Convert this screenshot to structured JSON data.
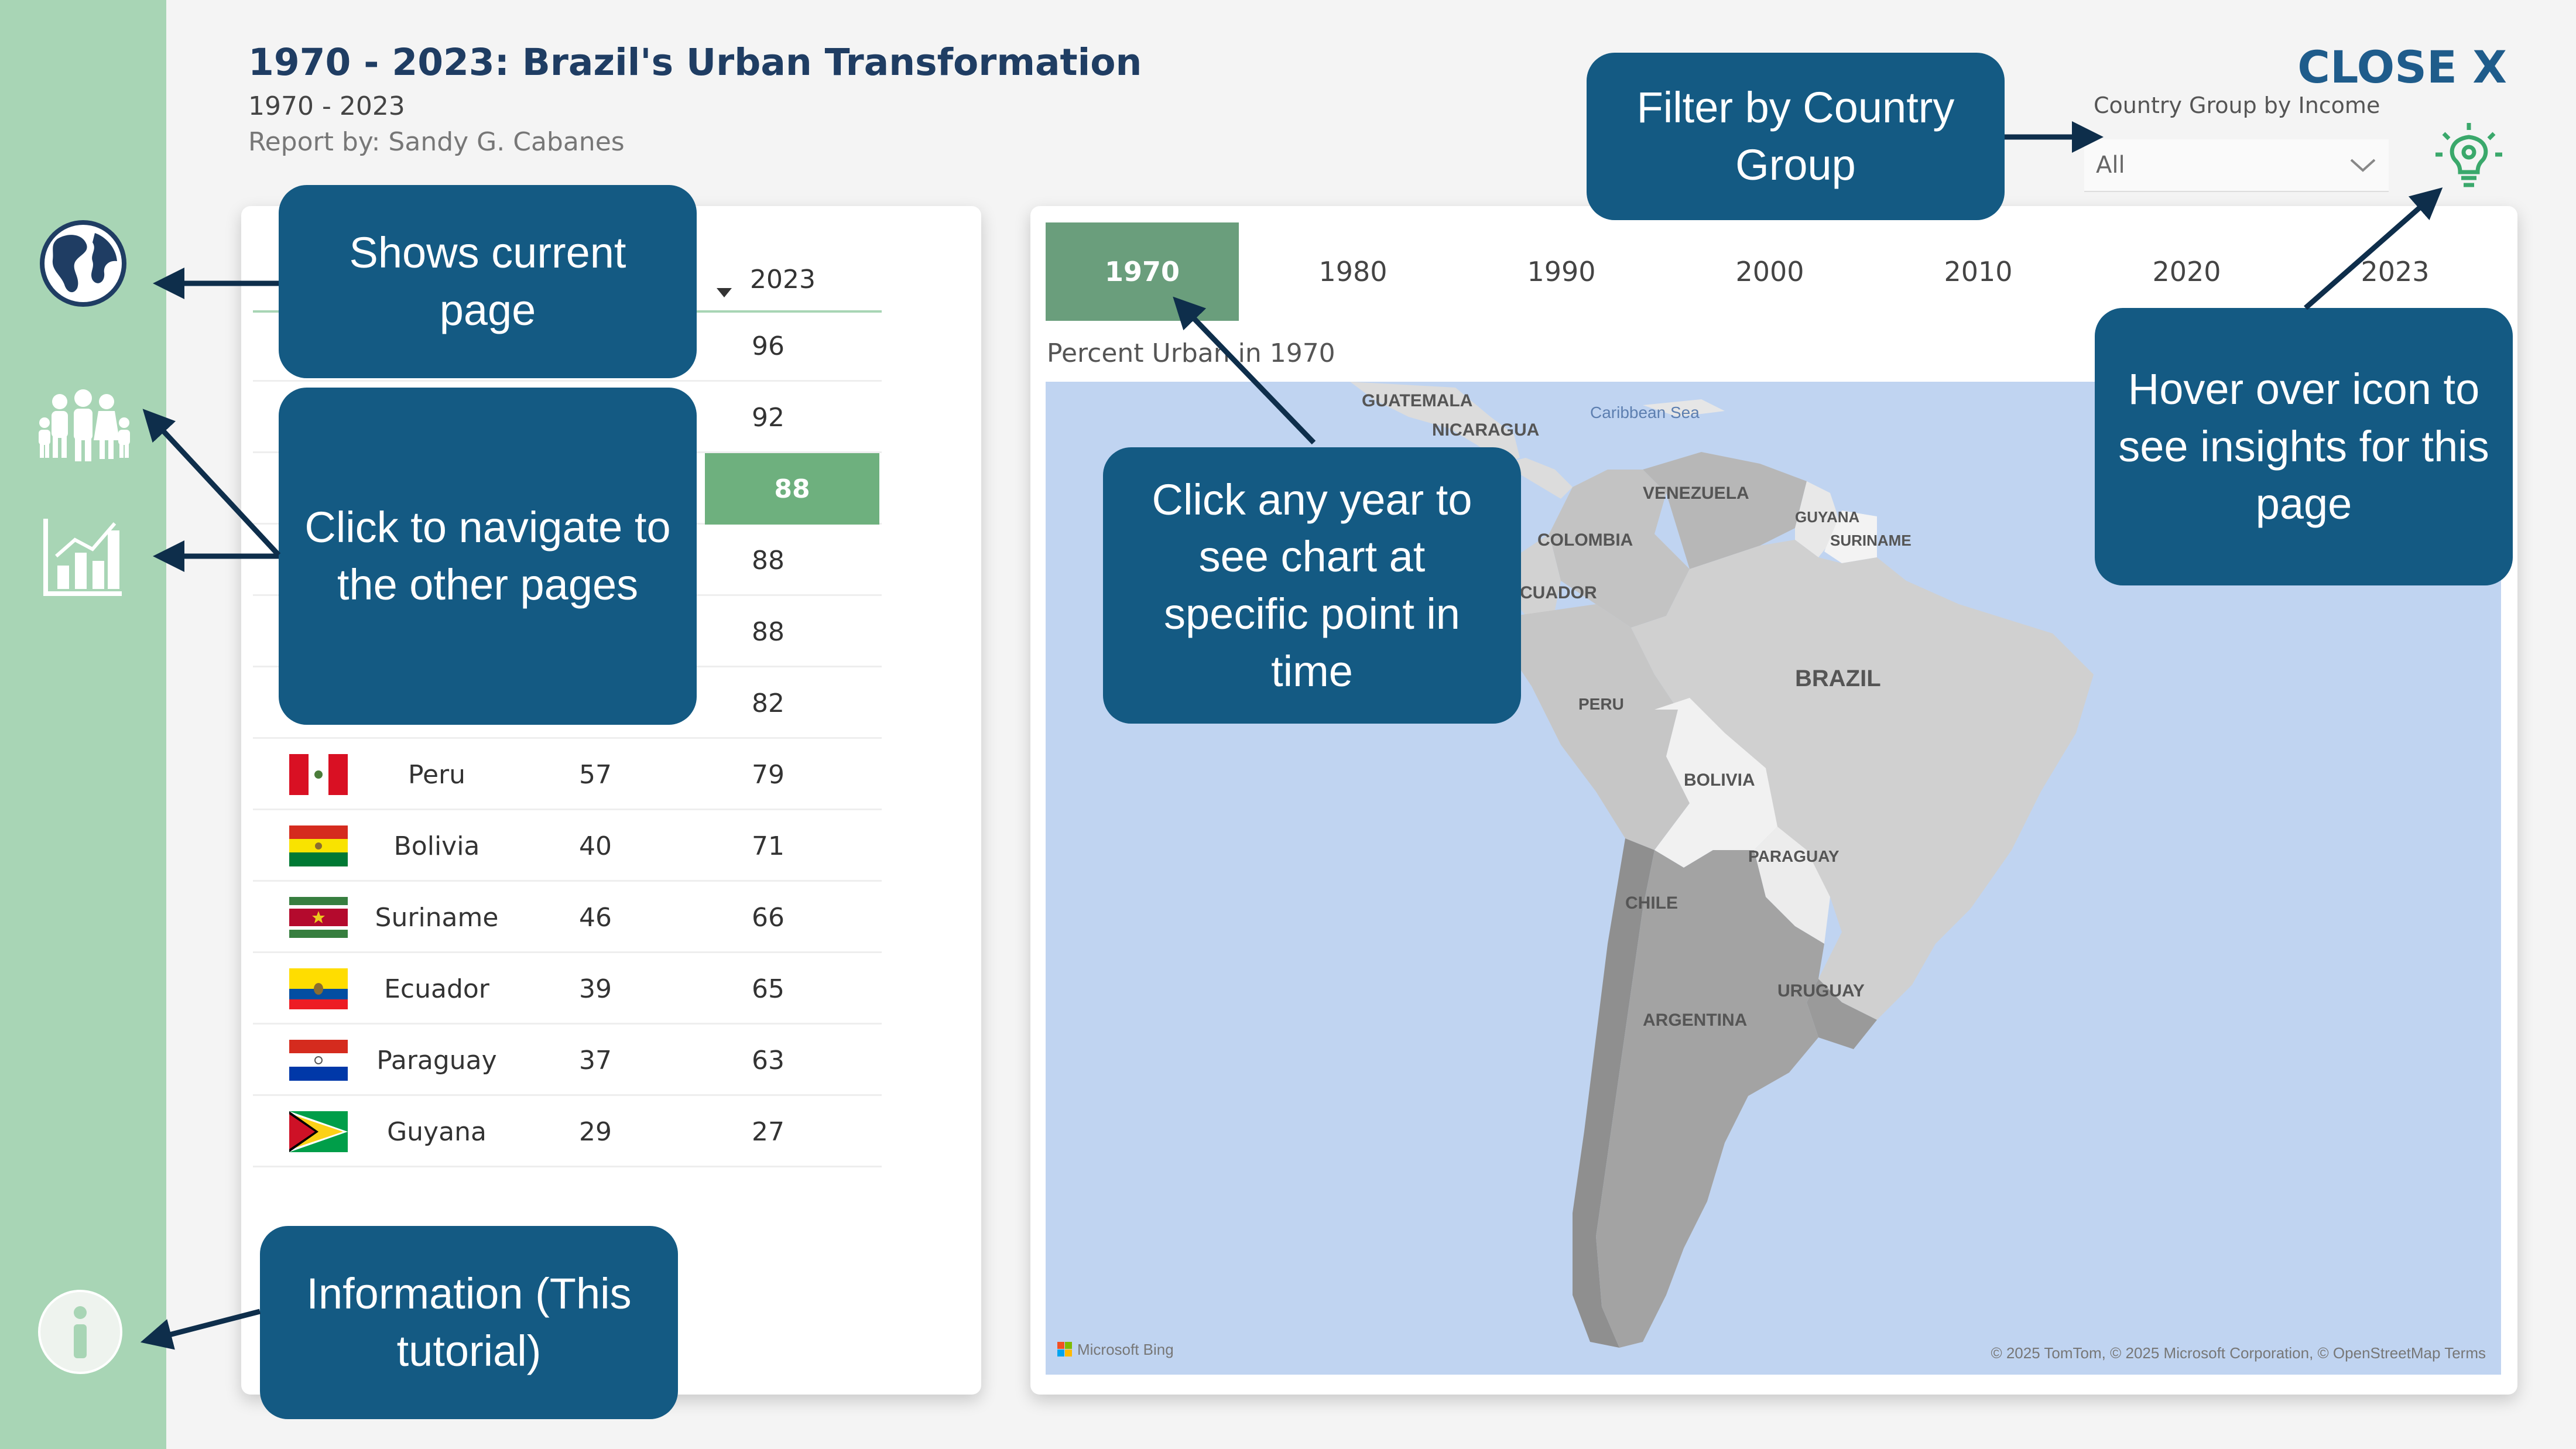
{
  "header": {
    "title": "1970 - 2023: Brazil's Urban Transformation",
    "subtitle": "1970 - 2023",
    "byline": "Report by: Sandy G. Cabanes",
    "close_label": "CLOSE X"
  },
  "filter": {
    "label": "Country Group by Income",
    "value": "All"
  },
  "nav": {
    "items": [
      {
        "icon": "globe-icon"
      },
      {
        "icon": "family-icon"
      },
      {
        "icon": "bar-chart-icon"
      }
    ],
    "info_icon": "info-icon"
  },
  "table": {
    "col_2023": "2023",
    "rows": [
      {
        "name": "",
        "v1970": "",
        "v2023": "96"
      },
      {
        "name": "",
        "v1970": "",
        "v2023": "92"
      },
      {
        "name": "",
        "v1970": "",
        "v2023": "88"
      },
      {
        "name": "",
        "v1970": "",
        "v2023": "88"
      },
      {
        "name": "",
        "v1970": "",
        "v2023": "88"
      },
      {
        "name": "",
        "v1970": "",
        "v2023": "82"
      },
      {
        "name": "Peru",
        "v1970": "57",
        "v2023": "79"
      },
      {
        "name": "Bolivia",
        "v1970": "40",
        "v2023": "71"
      },
      {
        "name": "Suriname",
        "v1970": "46",
        "v2023": "66"
      },
      {
        "name": "Ecuador",
        "v1970": "39",
        "v2023": "65"
      },
      {
        "name": "Paraguay",
        "v1970": "37",
        "v2023": "63"
      },
      {
        "name": "Guyana",
        "v1970": "29",
        "v2023": "27"
      }
    ]
  },
  "years": [
    "1970",
    "1980",
    "1990",
    "2000",
    "2010",
    "2020",
    "2023"
  ],
  "active_year": "1970",
  "map": {
    "caption": "Percent Urban in 1970",
    "labels": {
      "guatemala": "GUATEMALA",
      "nicaragua": "NICARAGUA",
      "caribbean": "Caribbean Sea",
      "venezuela": "VENEZUELA",
      "guyana": "GUYANA",
      "suriname": "SURINAME",
      "colombia": "COLOMBIA",
      "ecuador": "ECUADOR",
      "brazil": "BRAZIL",
      "peru": "PERU",
      "bolivia": "BOLIVIA",
      "paraguay": "PARAGUAY",
      "chile": "CHILE",
      "uruguay": "URUGUAY",
      "argentina": "ARGENTINA"
    },
    "bing": "Microsoft Bing",
    "attribution": "© 2025 TomTom, © 2025 Microsoft Corporation, © OpenStreetMap Terms"
  },
  "callouts": {
    "current_page": "Shows current page",
    "navigate": "Click to navigate to the other pages",
    "year": "Click any year to see chart at specific point in time",
    "filter": "Filter by Country Group",
    "insights": "Hover over icon to see insights for this page",
    "info": "Information (This tutorial)"
  }
}
